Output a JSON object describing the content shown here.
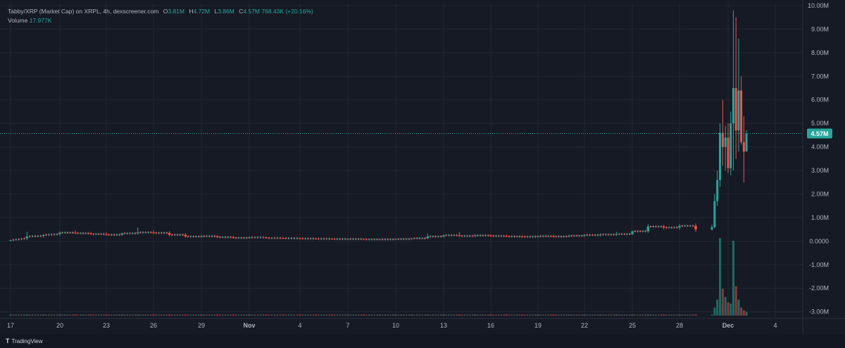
{
  "header": {
    "title": "Tabby/XRP (Market Cap) on XRPL, 4h, dexscreener.com",
    "ohlc": [
      {
        "key": "O",
        "value": "3.81M"
      },
      {
        "key": "H",
        "value": "4.72M"
      },
      {
        "key": "L",
        "value": "3.86M"
      },
      {
        "key": "C",
        "value": "4.57M"
      }
    ],
    "change": "768.43K (+20.16%)",
    "volume_label": "Volume",
    "volume_value": "17.977K"
  },
  "footer": {
    "brand": "TradingView",
    "brand_icon": "tradingview-logo-icon"
  },
  "colors": {
    "background": "#161a25",
    "grid": "#232733",
    "up": "#26a69a",
    "down": "#ef5350",
    "up_volume": "#1f6b63",
    "down_volume": "#8a3b3d",
    "axis_text": "#b2b5be",
    "price_line": "#26a69a"
  },
  "chart_data": {
    "type": "candlestick",
    "current_price_label": "4.57M",
    "current_price": 4.57,
    "y_unit": "M",
    "ylim": [
      -3.1,
      10.0
    ],
    "y_ticks": [
      {
        "value": 10,
        "label": "10.00M"
      },
      {
        "value": 9,
        "label": "9.00M"
      },
      {
        "value": 8,
        "label": "8.00M"
      },
      {
        "value": 7,
        "label": "7.00M"
      },
      {
        "value": 6,
        "label": "6.00M"
      },
      {
        "value": 5,
        "label": "5.00M"
      },
      {
        "value": 4,
        "label": "4.00M"
      },
      {
        "value": 3,
        "label": "3.00M"
      },
      {
        "value": 2,
        "label": "2.00M"
      },
      {
        "value": 1,
        "label": "1.00M"
      },
      {
        "value": 0,
        "label": "0.0000"
      },
      {
        "value": -1,
        "label": "-1.00M"
      },
      {
        "value": -2,
        "label": "-2.00M"
      },
      {
        "value": -3,
        "label": "-3.00M"
      }
    ],
    "x_ticks": [
      {
        "date": "Oct 17",
        "label": "17",
        "bold": false
      },
      {
        "date": "Oct 20",
        "label": "20",
        "bold": false
      },
      {
        "date": "Oct 23",
        "label": "23",
        "bold": false
      },
      {
        "date": "Oct 26",
        "label": "26",
        "bold": false
      },
      {
        "date": "Oct 29",
        "label": "29",
        "bold": false
      },
      {
        "date": "Nov 1",
        "label": "Nov",
        "bold": true
      },
      {
        "date": "Nov 4",
        "label": "4",
        "bold": false
      },
      {
        "date": "Nov 7",
        "label": "7",
        "bold": false
      },
      {
        "date": "Nov 10",
        "label": "10",
        "bold": false
      },
      {
        "date": "Nov 13",
        "label": "13",
        "bold": false
      },
      {
        "date": "Nov 16",
        "label": "16",
        "bold": false
      },
      {
        "date": "Nov 19",
        "label": "19",
        "bold": false
      },
      {
        "date": "Nov 22",
        "label": "22",
        "bold": false
      },
      {
        "date": "Nov 25",
        "label": "25",
        "bold": false
      },
      {
        "date": "Nov 28",
        "label": "28",
        "bold": false
      },
      {
        "date": "Dec 1",
        "label": "Dec",
        "bold": true
      },
      {
        "date": "Dec 4",
        "label": "4",
        "bold": false
      }
    ],
    "candles": [
      {
        "date": "Oct 17",
        "o": 0.02,
        "h": 0.06,
        "l": 0.0,
        "c": 0.04,
        "v": 0.02
      },
      {
        "date": "Oct 18",
        "o": 0.12,
        "h": 0.4,
        "l": 0.05,
        "c": 0.2,
        "v": 0.08
      },
      {
        "date": "Oct 19",
        "o": 0.22,
        "h": 0.3,
        "l": 0.15,
        "c": 0.26,
        "v": 0.05
      },
      {
        "date": "Oct 20",
        "o": 0.3,
        "h": 0.42,
        "l": 0.24,
        "c": 0.36,
        "v": 0.07
      },
      {
        "date": "Oct 21",
        "o": 0.36,
        "h": 0.45,
        "l": 0.3,
        "c": 0.34,
        "v": 0.05
      },
      {
        "date": "Oct 22",
        "o": 0.33,
        "h": 0.4,
        "l": 0.27,
        "c": 0.3,
        "v": 0.04
      },
      {
        "date": "Oct 23",
        "o": 0.3,
        "h": 0.37,
        "l": 0.24,
        "c": 0.27,
        "v": 0.04
      },
      {
        "date": "Oct 24",
        "o": 0.27,
        "h": 0.36,
        "l": 0.22,
        "c": 0.33,
        "v": 0.05
      },
      {
        "date": "Oct 25",
        "o": 0.33,
        "h": 0.58,
        "l": 0.28,
        "c": 0.37,
        "v": 0.07
      },
      {
        "date": "Oct 26",
        "o": 0.37,
        "h": 0.47,
        "l": 0.3,
        "c": 0.35,
        "v": 0.05
      },
      {
        "date": "Oct 27",
        "o": 0.35,
        "h": 0.42,
        "l": 0.2,
        "c": 0.27,
        "v": 0.06
      },
      {
        "date": "Oct 28",
        "o": 0.27,
        "h": 0.34,
        "l": 0.15,
        "c": 0.2,
        "v": 0.04
      },
      {
        "date": "Oct 29",
        "o": 0.2,
        "h": 0.27,
        "l": 0.15,
        "c": 0.21,
        "v": 0.03
      },
      {
        "date": "Oct 30",
        "o": 0.21,
        "h": 0.26,
        "l": 0.14,
        "c": 0.17,
        "v": 0.03
      },
      {
        "date": "Oct 31",
        "o": 0.17,
        "h": 0.22,
        "l": 0.1,
        "c": 0.14,
        "v": 0.03
      },
      {
        "date": "Nov 1",
        "o": 0.14,
        "h": 0.2,
        "l": 0.1,
        "c": 0.16,
        "v": 0.03
      },
      {
        "date": "Nov 2",
        "o": 0.16,
        "h": 0.2,
        "l": 0.1,
        "c": 0.13,
        "v": 0.02
      },
      {
        "date": "Nov 3",
        "o": 0.13,
        "h": 0.18,
        "l": 0.09,
        "c": 0.12,
        "v": 0.02
      },
      {
        "date": "Nov 4",
        "o": 0.12,
        "h": 0.16,
        "l": 0.08,
        "c": 0.11,
        "v": 0.02
      },
      {
        "date": "Nov 5",
        "o": 0.11,
        "h": 0.15,
        "l": 0.07,
        "c": 0.1,
        "v": 0.02
      },
      {
        "date": "Nov 6",
        "o": 0.1,
        "h": 0.14,
        "l": 0.07,
        "c": 0.09,
        "v": 0.02
      },
      {
        "date": "Nov 7",
        "o": 0.09,
        "h": 0.13,
        "l": 0.06,
        "c": 0.09,
        "v": 0.02
      },
      {
        "date": "Nov 8",
        "o": 0.09,
        "h": 0.13,
        "l": 0.06,
        "c": 0.08,
        "v": 0.02
      },
      {
        "date": "Nov 9",
        "o": 0.08,
        "h": 0.12,
        "l": 0.05,
        "c": 0.08,
        "v": 0.02
      },
      {
        "date": "Nov 10",
        "o": 0.08,
        "h": 0.12,
        "l": 0.05,
        "c": 0.09,
        "v": 0.02
      },
      {
        "date": "Nov 11",
        "o": 0.09,
        "h": 0.14,
        "l": 0.06,
        "c": 0.12,
        "v": 0.02
      },
      {
        "date": "Nov 12",
        "o": 0.12,
        "h": 0.32,
        "l": 0.1,
        "c": 0.2,
        "v": 0.05
      },
      {
        "date": "Nov 13",
        "o": 0.2,
        "h": 0.28,
        "l": 0.16,
        "c": 0.25,
        "v": 0.04
      },
      {
        "date": "Nov 14",
        "o": 0.25,
        "h": 0.38,
        "l": 0.18,
        "c": 0.22,
        "v": 0.04
      },
      {
        "date": "Nov 15",
        "o": 0.22,
        "h": 0.3,
        "l": 0.17,
        "c": 0.24,
        "v": 0.03
      },
      {
        "date": "Nov 16",
        "o": 0.24,
        "h": 0.3,
        "l": 0.18,
        "c": 0.22,
        "v": 0.03
      },
      {
        "date": "Nov 17",
        "o": 0.22,
        "h": 0.28,
        "l": 0.17,
        "c": 0.2,
        "v": 0.03
      },
      {
        "date": "Nov 18",
        "o": 0.2,
        "h": 0.26,
        "l": 0.15,
        "c": 0.19,
        "v": 0.03
      },
      {
        "date": "Nov 19",
        "o": 0.19,
        "h": 0.26,
        "l": 0.15,
        "c": 0.21,
        "v": 0.03
      },
      {
        "date": "Nov 20",
        "o": 0.21,
        "h": 0.28,
        "l": 0.16,
        "c": 0.2,
        "v": 0.03
      },
      {
        "date": "Nov 21",
        "o": 0.2,
        "h": 0.27,
        "l": 0.16,
        "c": 0.23,
        "v": 0.03
      },
      {
        "date": "Nov 22",
        "o": 0.23,
        "h": 0.3,
        "l": 0.18,
        "c": 0.26,
        "v": 0.03
      },
      {
        "date": "Nov 23",
        "o": 0.26,
        "h": 0.34,
        "l": 0.2,
        "c": 0.28,
        "v": 0.03
      },
      {
        "date": "Nov 24",
        "o": 0.28,
        "h": 0.4,
        "l": 0.22,
        "c": 0.3,
        "v": 0.04
      },
      {
        "date": "Nov 25",
        "o": 0.3,
        "h": 0.45,
        "l": 0.25,
        "c": 0.42,
        "v": 0.05
      },
      {
        "date": "Nov 26",
        "o": 0.42,
        "h": 0.72,
        "l": 0.35,
        "c": 0.62,
        "v": 0.08
      },
      {
        "date": "Nov 27",
        "o": 0.62,
        "h": 0.7,
        "l": 0.5,
        "c": 0.58,
        "v": 0.05
      },
      {
        "date": "Nov 28",
        "o": 0.58,
        "h": 0.72,
        "l": 0.48,
        "c": 0.65,
        "v": 0.05
      },
      {
        "date": "Nov 29",
        "o": 0.65,
        "h": 0.75,
        "l": 0.4,
        "c": 0.5,
        "v": 0.06
      },
      {
        "date": "Nov 30 00:00",
        "o": 0.5,
        "h": 0.7,
        "l": 0.45,
        "c": 0.6,
        "v": 0.05
      },
      {
        "date": "Nov 30 04:00",
        "o": 0.6,
        "h": 2.0,
        "l": 0.55,
        "c": 1.7,
        "v": 0.6
      },
      {
        "date": "Nov 30 08:00",
        "o": 1.7,
        "h": 3.0,
        "l": 1.5,
        "c": 2.6,
        "v": 1.2
      },
      {
        "date": "Nov 30 12:00",
        "o": 2.6,
        "h": 5.0,
        "l": 2.3,
        "c": 4.6,
        "v": 5.8
      },
      {
        "date": "Nov 30 16:00",
        "o": 4.6,
        "h": 6.0,
        "l": 3.2,
        "c": 4.0,
        "v": 2.0
      },
      {
        "date": "Nov 30 20:00",
        "o": 4.0,
        "h": 4.9,
        "l": 3.0,
        "c": 4.4,
        "v": 1.4
      },
      {
        "date": "Dec 1 00:00",
        "o": 4.4,
        "h": 5.0,
        "l": 2.9,
        "c": 3.1,
        "v": 1.0
      },
      {
        "date": "Dec 1 04:00",
        "o": 3.1,
        "h": 5.5,
        "l": 2.8,
        "c": 5.0,
        "v": 0.9
      },
      {
        "date": "Dec 1 08:00",
        "o": 5.0,
        "h": 9.8,
        "l": 3.0,
        "c": 6.5,
        "v": 5.6
      },
      {
        "date": "Dec 1 12:00",
        "o": 6.5,
        "h": 9.5,
        "l": 3.5,
        "c": 4.7,
        "v": 2.2
      },
      {
        "date": "Dec 1 16:00",
        "o": 4.7,
        "h": 8.6,
        "l": 3.8,
        "c": 6.4,
        "v": 1.2
      },
      {
        "date": "Dec 1 20:00",
        "o": 6.4,
        "h": 7.0,
        "l": 4.1,
        "c": 4.2,
        "v": 0.6
      },
      {
        "date": "Dec 2 00:00",
        "o": 4.2,
        "h": 5.3,
        "l": 2.5,
        "c": 3.8,
        "v": 0.4
      },
      {
        "date": "Dec 2 04:00",
        "o": 3.81,
        "h": 4.72,
        "l": 3.86,
        "c": 4.57,
        "v": 0.3
      }
    ]
  }
}
